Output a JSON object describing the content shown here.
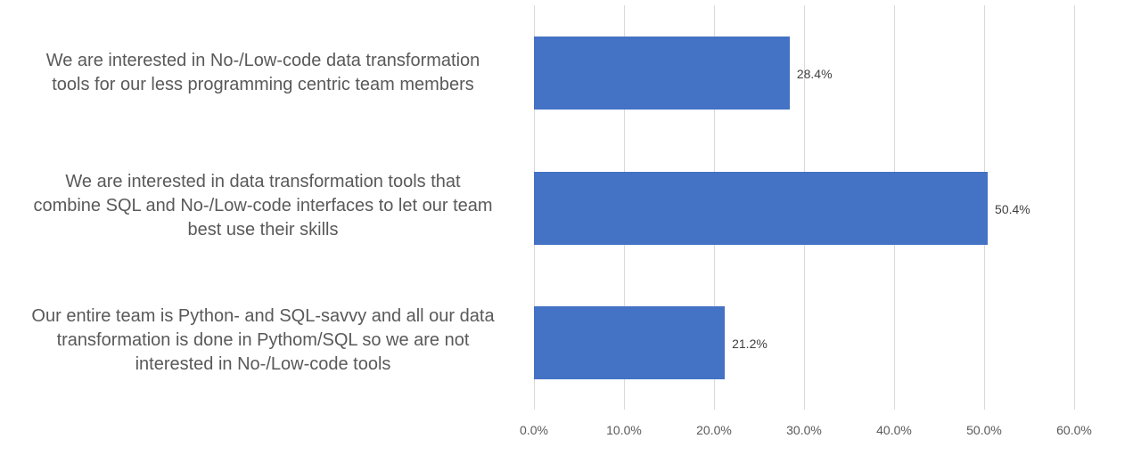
{
  "chart_data": {
    "type": "bar",
    "orientation": "horizontal",
    "title": "",
    "xlabel": "",
    "ylabel": "",
    "categories": [
      "We are interested in No-/Low-code data transformation tools for our less programming centric team members",
      "We are interested in data transformation tools that combine SQL and No-/Low-code interfaces to let our team best use their skills",
      "Our entire team is Python- and SQL-savvy and all our data transformation is done in Pythom/SQL so we are not interested in No-/Low-code tools"
    ],
    "values": [
      28.4,
      50.4,
      21.2
    ],
    "value_labels": [
      "28.4%",
      "50.4%",
      "21.2%"
    ],
    "xlim": [
      0,
      60
    ],
    "x_ticks": [
      "0.0%",
      "10.0%",
      "20.0%",
      "30.0%",
      "40.0%",
      "50.0%",
      "60.0%"
    ],
    "grid": true,
    "legend": null,
    "bar_color": "#4472c4"
  },
  "labels": {
    "cat0": [
      "We are interested in No-/Low-code data transformation",
      "tools for our less programming centric team members"
    ],
    "cat1": [
      "We are interested in data transformation tools that",
      "combine SQL and No-/Low-code interfaces to let our team",
      "best use their skills"
    ],
    "cat2": [
      "Our entire team is Python- and SQL-savvy and all our data",
      "transformation is done in Pythom/SQL so we are not",
      "interested in No-/Low-code tools"
    ]
  }
}
